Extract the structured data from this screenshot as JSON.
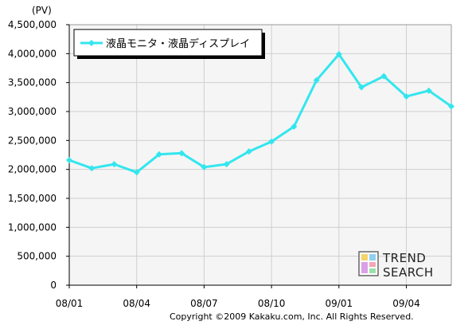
{
  "chart_data": {
    "type": "line",
    "unit_label": "(PV)",
    "x": [
      "08/01",
      "08/02",
      "08/03",
      "08/04",
      "08/05",
      "08/06",
      "08/07",
      "08/08",
      "08/09",
      "08/10",
      "08/11",
      "08/12",
      "09/01",
      "09/02",
      "09/03",
      "09/04",
      "09/05",
      "09/06"
    ],
    "x_tick_labels": [
      "08/01",
      "08/04",
      "08/07",
      "08/10",
      "09/01",
      "09/04"
    ],
    "series": [
      {
        "name": "液晶モニタ・液晶ディスプレイ",
        "color": "#33e6ee",
        "values": [
          2160000,
          2020000,
          2090000,
          1950000,
          2260000,
          2280000,
          2040000,
          2090000,
          2310000,
          2480000,
          2740000,
          3540000,
          3990000,
          3420000,
          3610000,
          3260000,
          3360000,
          3090000
        ]
      }
    ],
    "ylim": [
      0,
      4500000
    ],
    "y_ticks": [
      0,
      500000,
      1000000,
      1500000,
      2000000,
      2500000,
      3000000,
      3500000,
      4000000,
      4500000
    ],
    "y_tick_labels": [
      "0",
      "500,000",
      "1,000,000",
      "1,500,000",
      "2,000,000",
      "2,500,000",
      "3,000,000",
      "3,500,000",
      "4,000,000",
      "4,500,000"
    ],
    "grid": true,
    "legend_position": "top-left",
    "plot_background": "#f5f5f5",
    "grid_color": "#cfcfcf"
  },
  "copyright": "Copyright ©2009 Kakaku.com, Inc. All Rights Reserved.",
  "logo": {
    "line1": "TREND",
    "line2": "SEARCH"
  }
}
